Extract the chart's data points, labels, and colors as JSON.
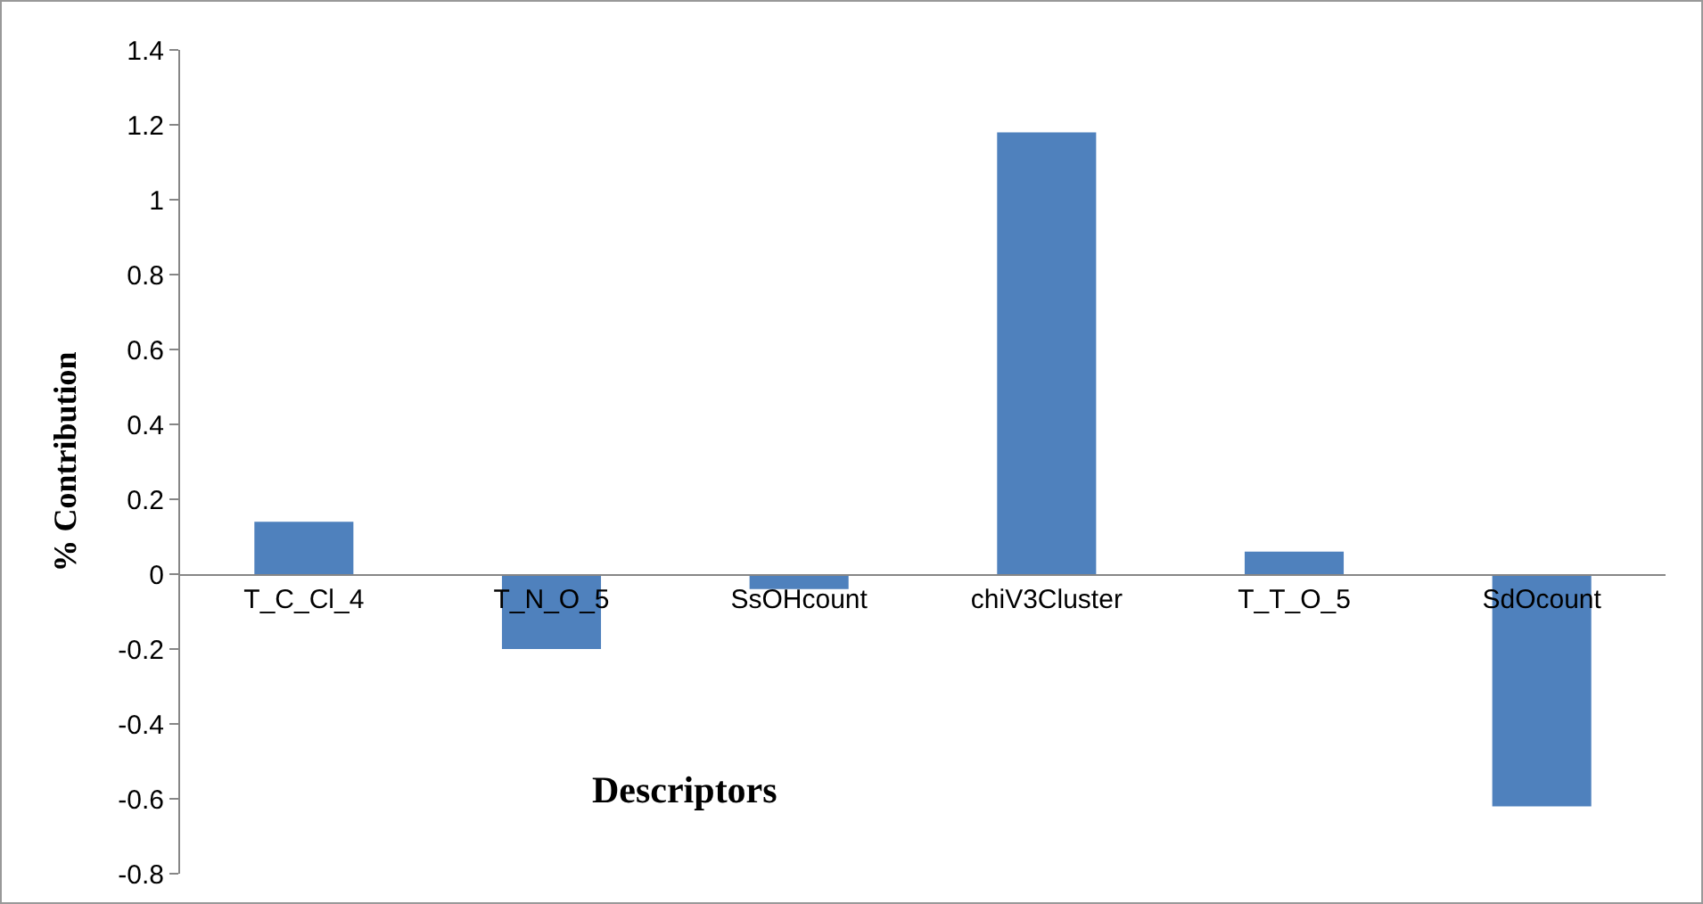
{
  "chart_data": {
    "type": "bar",
    "xlabel": "Descriptors",
    "ylabel": "% Contribution",
    "categories": [
      "T_C_Cl_4",
      "T_N_O_5",
      "SsOHcount",
      "chiV3Cluster",
      "T_T_O_5",
      "SdOcount"
    ],
    "values": [
      0.14,
      -0.2,
      -0.04,
      1.18,
      0.06,
      -0.62
    ],
    "color": "#4f81bd",
    "ylim": [
      -0.8,
      1.4
    ],
    "yticks": [
      -0.8,
      -0.6,
      -0.4,
      -0.2,
      0,
      0.2,
      0.4,
      0.6,
      0.8,
      1,
      1.2,
      1.4
    ],
    "grid": false
  }
}
